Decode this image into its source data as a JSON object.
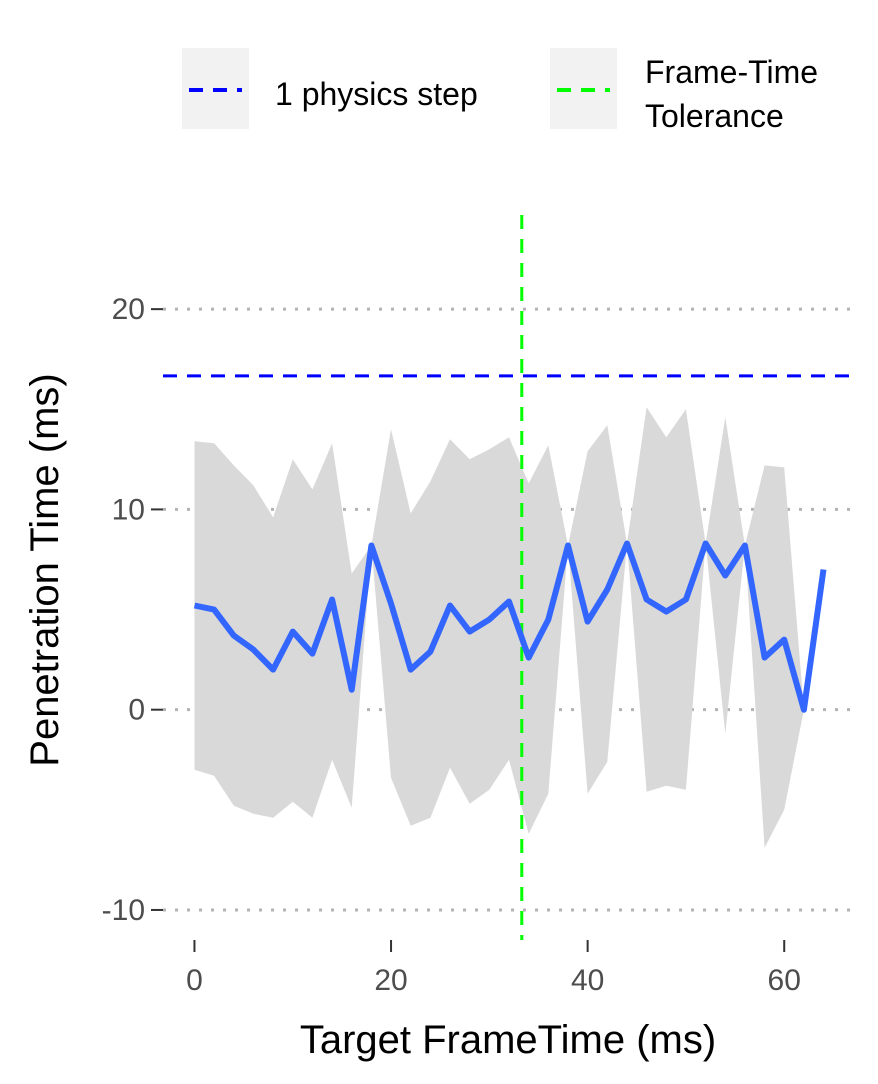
{
  "chart_data": {
    "type": "line",
    "title": "",
    "xlabel": "Target FrameTime (ms)",
    "ylabel": "Penetration Time (ms)",
    "xlim": [
      -3.2,
      67.2
    ],
    "ylim": [
      -11.5,
      25.2
    ],
    "x_ticks": [
      0,
      20,
      40,
      60
    ],
    "y_ticks": [
      -10,
      0,
      10,
      20
    ],
    "grid": "horizontal dotted",
    "legend_position": "top",
    "series": [
      {
        "kind": "line",
        "color": "#3366ff",
        "x": [
          0,
          2,
          4,
          6,
          8,
          10,
          12,
          14,
          16,
          18,
          20,
          22,
          24,
          26,
          28,
          30,
          32,
          34,
          36,
          38,
          40,
          42,
          44,
          46,
          48,
          50,
          52,
          54,
          56,
          58,
          60,
          62,
          64
        ],
        "y": [
          5.2,
          5.0,
          3.7,
          3.0,
          2.0,
          3.9,
          2.8,
          5.5,
          1.0,
          8.2,
          5.3,
          2.0,
          2.9,
          5.2,
          3.9,
          4.5,
          5.4,
          2.6,
          4.5,
          8.2,
          4.4,
          6.0,
          8.3,
          5.5,
          4.9,
          5.5,
          8.3,
          6.7,
          8.2,
          2.6,
          3.5,
          0.0,
          7.0
        ]
      },
      {
        "kind": "ribbon",
        "color": "#d9d9d9",
        "x": [
          0,
          2,
          4,
          6,
          8,
          10,
          12,
          14,
          16,
          18,
          20,
          22,
          24,
          26,
          28,
          30,
          32,
          34,
          36,
          38,
          40,
          42,
          44,
          46,
          48,
          50,
          52,
          54,
          56,
          58,
          60,
          62,
          64
        ],
        "upper": [
          13.4,
          13.3,
          12.2,
          11.2,
          9.6,
          12.5,
          11.0,
          13.3,
          6.8,
          8.2,
          14.0,
          9.8,
          11.4,
          13.5,
          12.5,
          13.0,
          13.6,
          11.3,
          13.2,
          8.2,
          12.9,
          14.2,
          8.3,
          15.1,
          13.6,
          15.0,
          8.3,
          14.6,
          8.2,
          12.2,
          12.1,
          0.0,
          7.0
        ],
        "lower": [
          -3.0,
          -3.3,
          -4.8,
          -5.2,
          -5.4,
          -4.6,
          -5.4,
          -2.5,
          -4.9,
          8.2,
          -3.4,
          -5.8,
          -5.4,
          -2.9,
          -4.7,
          -4.0,
          -2.5,
          -6.2,
          -4.2,
          8.2,
          -4.2,
          -2.6,
          8.3,
          -4.1,
          -3.8,
          -4.0,
          8.3,
          -1.2,
          8.2,
          -6.9,
          -5.0,
          0.0,
          7.0
        ]
      }
    ],
    "reference_lines": [
      {
        "orientation": "horizontal",
        "value": 16.67,
        "color": "#0000ff",
        "style": "dashed"
      },
      {
        "orientation": "vertical",
        "value": 33.3,
        "color": "#00ff00",
        "style": "dashed"
      }
    ],
    "legend": {
      "entries": [
        {
          "label": "1 physics step",
          "color": "#0000ff",
          "style": "dashed"
        },
        {
          "label_lines": [
            "Frame-Time",
            "Tolerance"
          ],
          "color": "#00ff00",
          "style": "dashed"
        }
      ]
    },
    "colors": {
      "grid": "#b3b3b3",
      "legend_key_bg": "#f2f2f2",
      "tick_text": "#4d4d4d"
    }
  }
}
